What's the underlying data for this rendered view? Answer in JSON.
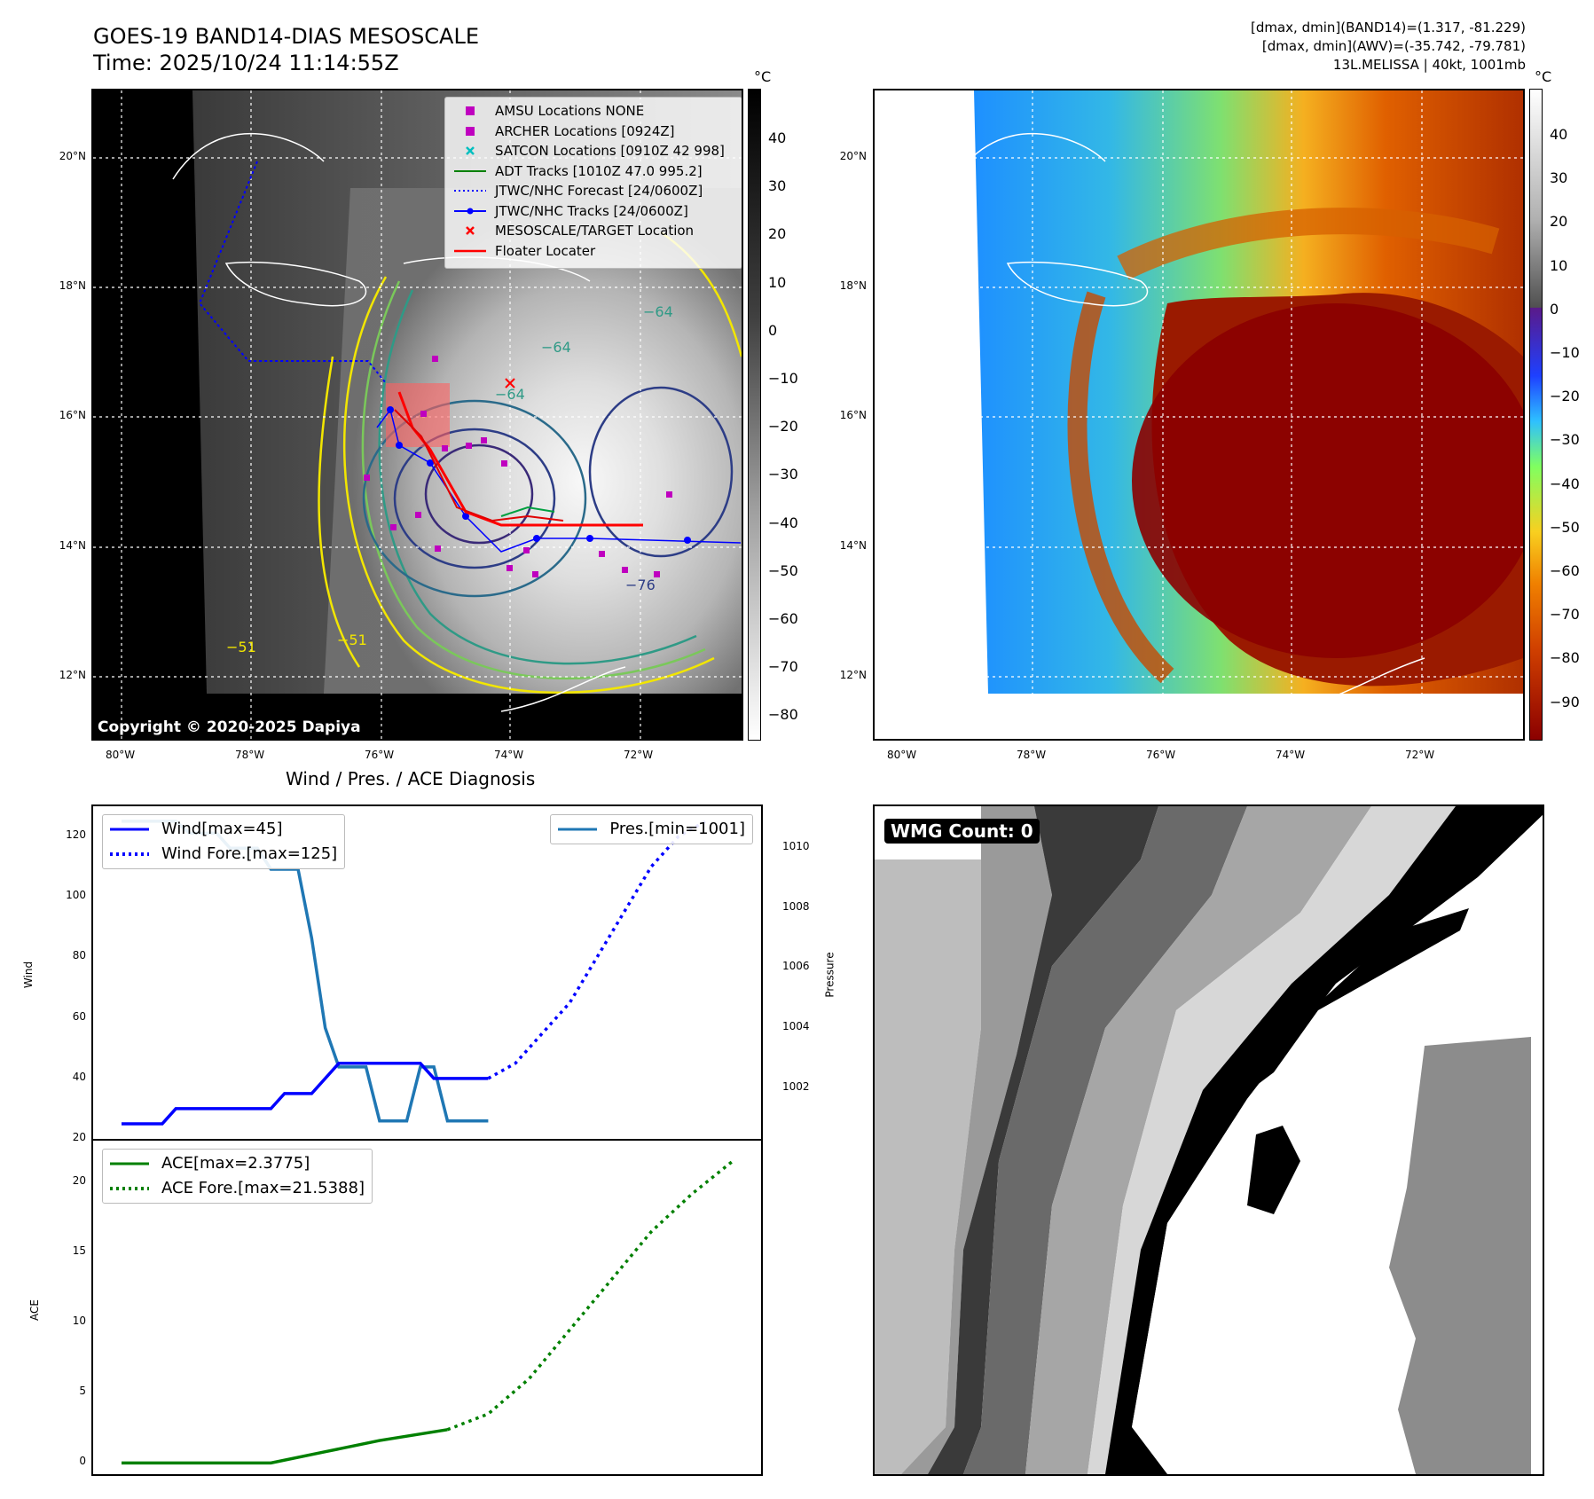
{
  "header": {
    "title_line1": "GOES-19 BAND14-DIAS MESOSCALE",
    "title_line2": "Time: 2025/10/24 11:14:55Z",
    "meta_line1": "[dmax, dmin](BAND14)=(1.317, -81.229)",
    "meta_line2": "[dmax, dmin](AWV)=(-35.742, -79.781)",
    "meta_line3": "13L.MELISSA | 40kt, 1001mb"
  },
  "map_ticks": {
    "lat": [
      "20°N",
      "18°N",
      "16°N",
      "14°N",
      "12°N"
    ],
    "lon": [
      "80°W",
      "78°W",
      "76°W",
      "74°W",
      "72°W"
    ]
  },
  "ir_panel": {
    "copyright": "Copyright © 2020-2025 Dapiya",
    "colorbar_unit": "°C",
    "colorbar_ticks": [
      "40",
      "30",
      "20",
      "10",
      "0",
      "−10",
      "−20",
      "−30",
      "−40",
      "−50",
      "−60",
      "−70",
      "−80"
    ],
    "contour_labels": [
      "−64",
      "−64",
      "−64",
      "−76",
      "−51",
      "−51"
    ],
    "legend": [
      {
        "label": "AMSU Locations NONE",
        "icon": "magenta-square",
        "color": "#bf00bf"
      },
      {
        "label": "ARCHER Locations [0924Z]",
        "icon": "magenta-square",
        "color": "#bf00bf"
      },
      {
        "label": "SATCON Locations [0910Z 42 998]",
        "icon": "cyan-x",
        "color": "#00bfbf"
      },
      {
        "label": "ADT Tracks [1010Z 47.0 995.2]",
        "icon": "green-line",
        "color": "#008000"
      },
      {
        "label": "JTWC/NHC Forecast [24/0600Z]",
        "icon": "blue-dotted-line",
        "color": "#0000ff"
      },
      {
        "label": "JTWC/NHC Tracks [24/0600Z]",
        "icon": "blue-dot-line",
        "color": "#0000ff"
      },
      {
        "label": "MESOSCALE/TARGET Location",
        "icon": "red-x",
        "color": "#ff0000"
      },
      {
        "label": "Floater Locater",
        "icon": "red-line",
        "color": "#ff0000"
      }
    ]
  },
  "awv_panel": {
    "colorbar_unit": "°C",
    "colorbar_ticks": [
      "40",
      "30",
      "20",
      "10",
      "0",
      "−10",
      "−20",
      "−30",
      "−40",
      "−50",
      "−60",
      "−70",
      "−80",
      "−90"
    ]
  },
  "wmg_panel": {
    "label": "WMG Count: 0"
  },
  "colors": {
    "wind": "#0000ff",
    "pressure": "#1f77b4",
    "ace": "#008000"
  },
  "chart_data": [
    {
      "type": "line",
      "title": "Wind / Pres. / ACE Diagnosis",
      "ylabel": "Wind",
      "y2label": "Pressure",
      "ylim": [
        20,
        130
      ],
      "y2lim": [
        1000.3,
        1011.4
      ],
      "yticks": [
        "120",
        "100",
        "80",
        "60",
        "40",
        "20"
      ],
      "y2ticks": [
        "1010",
        "1008",
        "1006",
        "1004",
        "1002"
      ],
      "x": [
        0,
        1,
        2,
        3,
        4,
        5,
        6,
        7,
        8,
        9,
        10,
        11,
        12,
        13,
        14,
        15,
        16,
        17,
        18,
        19,
        20,
        21,
        22,
        23,
        24,
        25,
        26,
        27,
        28
      ],
      "series": [
        {
          "name": "Wind[max=45]",
          "style": "solid",
          "x": [
            0,
            3,
            4,
            11,
            12,
            14,
            16,
            17,
            22,
            23,
            27
          ],
          "values": [
            25,
            25,
            30,
            30,
            35,
            35,
            45,
            45,
            45,
            40,
            40
          ]
        },
        {
          "name": "Wind Fore.[max=125]",
          "style": "dotted",
          "x": [
            27,
            29,
            31,
            33,
            35,
            37,
            39,
            41,
            43
          ],
          "values": [
            40,
            45,
            55,
            65,
            80,
            95,
            110,
            120,
            125
          ]
        },
        {
          "name": "Pres.[min=1001]",
          "style": "solid",
          "axis": "right",
          "x": [
            0,
            4,
            5,
            7,
            8,
            10,
            11,
            13,
            14,
            15,
            16,
            18,
            19,
            21,
            22,
            23,
            24,
            25,
            27
          ],
          "values": [
            1010.9,
            1010.9,
            1010.5,
            1010.5,
            1010.0,
            1010.0,
            1009.3,
            1009.3,
            1007.0,
            1004.0,
            1002.7,
            1002.7,
            1000.9,
            1000.9,
            1002.7,
            1002.7,
            1000.9,
            1000.9,
            1000.9
          ]
        }
      ],
      "legend_left": [
        "Wind[max=45]",
        "Wind Fore.[max=125]"
      ],
      "legend_right": [
        "Pres.[min=1001]"
      ]
    },
    {
      "type": "line",
      "ylabel": "ACE",
      "ylim": [
        -0.8,
        23
      ],
      "yticks": [
        "20",
        "15",
        "10",
        "5",
        "0"
      ],
      "series": [
        {
          "name": "ACE[max=2.3775]",
          "style": "solid",
          "x": [
            0,
            11,
            15,
            19,
            24
          ],
          "values": [
            0,
            0,
            0.8,
            1.6,
            2.3775
          ]
        },
        {
          "name": "ACE Fore.[max=21.5388]",
          "style": "dotted",
          "x": [
            24,
            27,
            30,
            33,
            36,
            39,
            42,
            45
          ],
          "values": [
            2.3775,
            3.5,
            6,
            9.5,
            13,
            16.5,
            19.2,
            21.5388
          ]
        }
      ],
      "legend": [
        "ACE[max=2.3775]",
        "ACE Fore.[max=21.5388]"
      ]
    }
  ]
}
